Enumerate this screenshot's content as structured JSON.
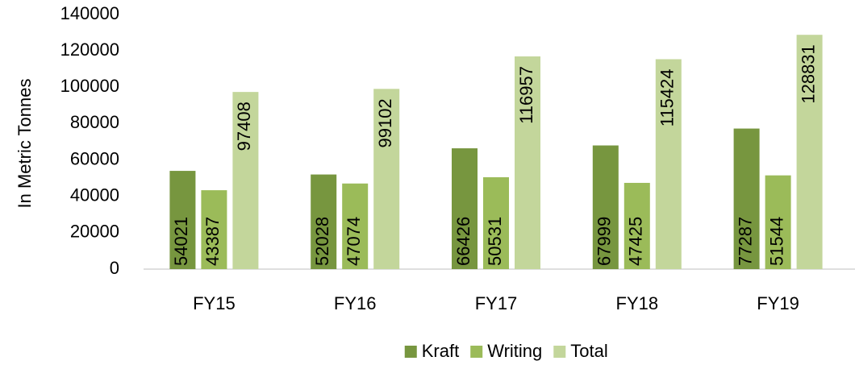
{
  "chart_data": {
    "type": "bar",
    "y_label": "In Metric Tonnes",
    "categories": [
      "FY15",
      "FY16",
      "FY17",
      "FY18",
      "FY19"
    ],
    "series": [
      {
        "name": "Kraft",
        "color": "#77963f",
        "values": [
          54021,
          52028,
          66426,
          67999,
          77287
        ]
      },
      {
        "name": "Writing",
        "color": "#9bbb59",
        "values": [
          43387,
          47074,
          50531,
          47425,
          51544
        ]
      },
      {
        "name": "Total",
        "color": "#c3d69b",
        "values": [
          97408,
          99102,
          116957,
          115424,
          128831
        ]
      }
    ],
    "ylim": [
      0,
      140000
    ],
    "yticks": [
      0,
      20000,
      40000,
      60000,
      80000,
      100000,
      120000,
      140000
    ],
    "grid": false,
    "legend": "bottom"
  }
}
